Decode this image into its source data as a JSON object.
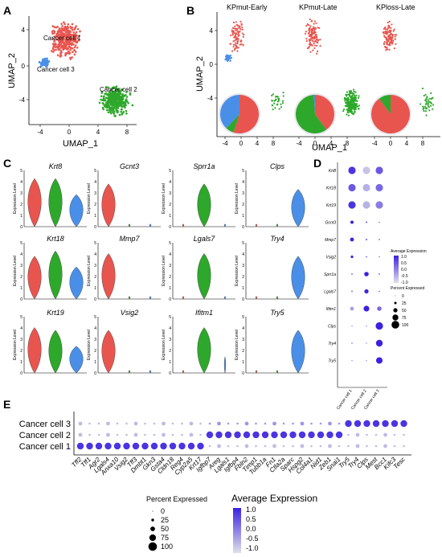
{
  "panels": {
    "A": "A",
    "B": "B",
    "C": "C",
    "D": "D",
    "E": "E"
  },
  "panelA": {
    "xlabel": "UMAP_1",
    "ylabel": "UMAP_2",
    "xticks": [
      "-4",
      "0",
      "4",
      "8"
    ],
    "yticks": [
      "4",
      "0",
      "-4"
    ],
    "labels": [
      "Cancer cell 1",
      "Cancer cell 3",
      "Cancer cell 2"
    ]
  },
  "panelB": {
    "titles": [
      "KPmut-Early",
      "KPmut-Late",
      "KPloss-Late"
    ],
    "xlabel": "UMAP_1",
    "ylabel": "UMAP_2",
    "xticks": [
      "-4",
      "0",
      "4",
      "8"
    ],
    "yticks": [
      "4",
      "0",
      "-4"
    ],
    "pies": [
      [
        {
          "name": "Cancer cell 1",
          "frac": 0.55
        },
        {
          "name": "Cancer cell 2",
          "frac": 0.07
        },
        {
          "name": "Cancer cell 3",
          "frac": 0.38
        }
      ],
      [
        {
          "name": "Cancer cell 1",
          "frac": 0.4
        },
        {
          "name": "Cancer cell 2",
          "frac": 0.59
        },
        {
          "name": "Cancer cell 3",
          "frac": 0.01
        }
      ],
      [
        {
          "name": "Cancer cell 1",
          "frac": 0.9
        },
        {
          "name": "Cancer cell 2",
          "frac": 0.1
        },
        {
          "name": "Cancer cell 3",
          "frac": 0.0
        }
      ]
    ]
  },
  "panelC": {
    "ylabel": "Expression Level",
    "genes": [
      {
        "name": "Krt8",
        "yticks": [
          "0",
          "1",
          "2",
          "3",
          "4",
          "5"
        ],
        "v": [
          0.9,
          0.9,
          0.6
        ]
      },
      {
        "name": "Gcnt3",
        "yticks": [
          "0",
          "1",
          "2",
          "3",
          "4",
          "5"
        ],
        "v": [
          0.8,
          0.05,
          0.05
        ]
      },
      {
        "name": "Sprr1a",
        "yticks": [
          "0",
          "1",
          "2",
          "3",
          "4",
          "5"
        ],
        "v": [
          0.05,
          0.8,
          0.05
        ]
      },
      {
        "name": "Clps",
        "yticks": [
          "0",
          "1",
          "2",
          "3",
          "4",
          "5"
        ],
        "v": [
          0.05,
          0.05,
          0.7
        ]
      },
      {
        "name": "Krt18",
        "yticks": [
          "0",
          "1",
          "2",
          "3",
          "4",
          "5"
        ],
        "v": [
          0.8,
          0.9,
          0.6
        ]
      },
      {
        "name": "Mmp7",
        "yticks": [
          "0",
          "1",
          "2",
          "3",
          "4",
          "5"
        ],
        "v": [
          0.85,
          0.05,
          0.05
        ]
      },
      {
        "name": "Lgals7",
        "yticks": [
          "0",
          "1",
          "2",
          "3",
          "4",
          "5"
        ],
        "v": [
          0.05,
          0.85,
          0.05
        ]
      },
      {
        "name": "Try4",
        "yticks": [
          "0",
          "1",
          "2",
          "3",
          "4",
          "5"
        ],
        "v": [
          0.05,
          0.05,
          0.8
        ]
      },
      {
        "name": "Krt19",
        "yticks": [
          "0",
          "1",
          "2",
          "3",
          "4",
          "5"
        ],
        "v": [
          0.85,
          0.8,
          0.5
        ]
      },
      {
        "name": "Vsig2",
        "yticks": [
          "0",
          "1",
          "2",
          "3",
          "4",
          "5"
        ],
        "v": [
          0.8,
          0.05,
          0.05
        ]
      },
      {
        "name": "Ifitm1",
        "yticks": [
          "0",
          "1",
          "2",
          "3",
          "4",
          "5"
        ],
        "v": [
          0.05,
          0.85,
          0.3
        ]
      },
      {
        "name": "Try5",
        "yticks": [
          "0",
          "1",
          "2",
          "3",
          "4",
          "5"
        ],
        "v": [
          0.05,
          0.05,
          0.8
        ]
      }
    ]
  },
  "panelD": {
    "genes": [
      "Krt8",
      "Krt18",
      "Krt19",
      "Gcnt3",
      "Mmp7",
      "Vsig2",
      "Sprr1a",
      "Lgals7",
      "Ifitm1",
      "Clps",
      "Try4",
      "Try5"
    ],
    "clusters": [
      "Cancer cell 1",
      "Cancer cell 2",
      "Cancer cell 3"
    ],
    "pct": [
      [
        1,
        1,
        1
      ],
      [
        1,
        1,
        1
      ],
      [
        1,
        1,
        1
      ],
      [
        0.35,
        0.12,
        0.05
      ],
      [
        0.45,
        0.12,
        0.08
      ],
      [
        0.25,
        0.08,
        0.05
      ],
      [
        0.1,
        0.55,
        0.1
      ],
      [
        0.1,
        0.5,
        0.08
      ],
      [
        0.45,
        0.75,
        0.55
      ],
      [
        0.05,
        0.05,
        1
      ],
      [
        0.08,
        0.05,
        0.9
      ],
      [
        0.05,
        0.05,
        0.85
      ]
    ],
    "avg": [
      [
        0.9,
        0.1,
        0.7
      ],
      [
        0.7,
        0.2,
        0.6
      ],
      [
        0.9,
        0.2,
        0.5
      ],
      [
        1,
        0.6,
        0.6
      ],
      [
        1,
        0.6,
        0.6
      ],
      [
        1,
        0.6,
        0.6
      ],
      [
        0.5,
        1,
        0.5
      ],
      [
        0.5,
        1,
        0.5
      ],
      [
        0.3,
        1,
        0.6
      ],
      [
        0.4,
        0.4,
        1
      ],
      [
        0.4,
        0.4,
        1
      ],
      [
        0.4,
        0.4,
        1
      ]
    ],
    "legend_avg_title": "Average Expression",
    "legend_avg_ticks": [
      "1.0",
      "0.5",
      "0.0",
      "-0.5",
      "-1.0"
    ],
    "legend_pct_title": "Percent Expressed",
    "legend_pct_ticks": [
      "0",
      "25",
      "50",
      "75",
      "100"
    ]
  },
  "panelE": {
    "rows": [
      "Cancer cell 3",
      "Cancer cell 2",
      "Cancer cell 1"
    ],
    "genes": [
      "Tff2",
      "Tff1",
      "Agr2",
      "Lgals4",
      "Anxa10",
      "Vsig2",
      "Tff3",
      "Dmbt1",
      "Gkn3",
      "Gsta4",
      "Cldn18",
      "Reg4",
      "Cyp2a5",
      "Krt17",
      "Igfbp7",
      "Areg",
      "Lgals1",
      "Igfbp4",
      "Fbln2",
      "Timp1",
      "Tubb1a",
      "Fn1",
      "Ctla2a",
      "Sparc",
      "Hspg2",
      "Col4a1",
      "Nid1",
      "Zeb1",
      "Snai1",
      "Try5",
      "Try4",
      "Clps",
      "Mest",
      "Bcc1",
      "Kifc3",
      "Tesc"
    ],
    "legend_pct_title": "Percent Expressed",
    "legend_pct_ticks": [
      "0",
      "25",
      "50",
      "75",
      "100"
    ],
    "legend_avg_title": "Average Expression",
    "legend_avg_ticks": [
      "1.0",
      "0.5",
      "0.0",
      "-0.5",
      "-1.0"
    ]
  },
  "colors": {
    "c1": "#e8554e",
    "c2": "#2ea82b",
    "c3": "#4a8fe7",
    "dot_hi": "#3b22e0",
    "dot_lo": "#d6d6e6"
  }
}
